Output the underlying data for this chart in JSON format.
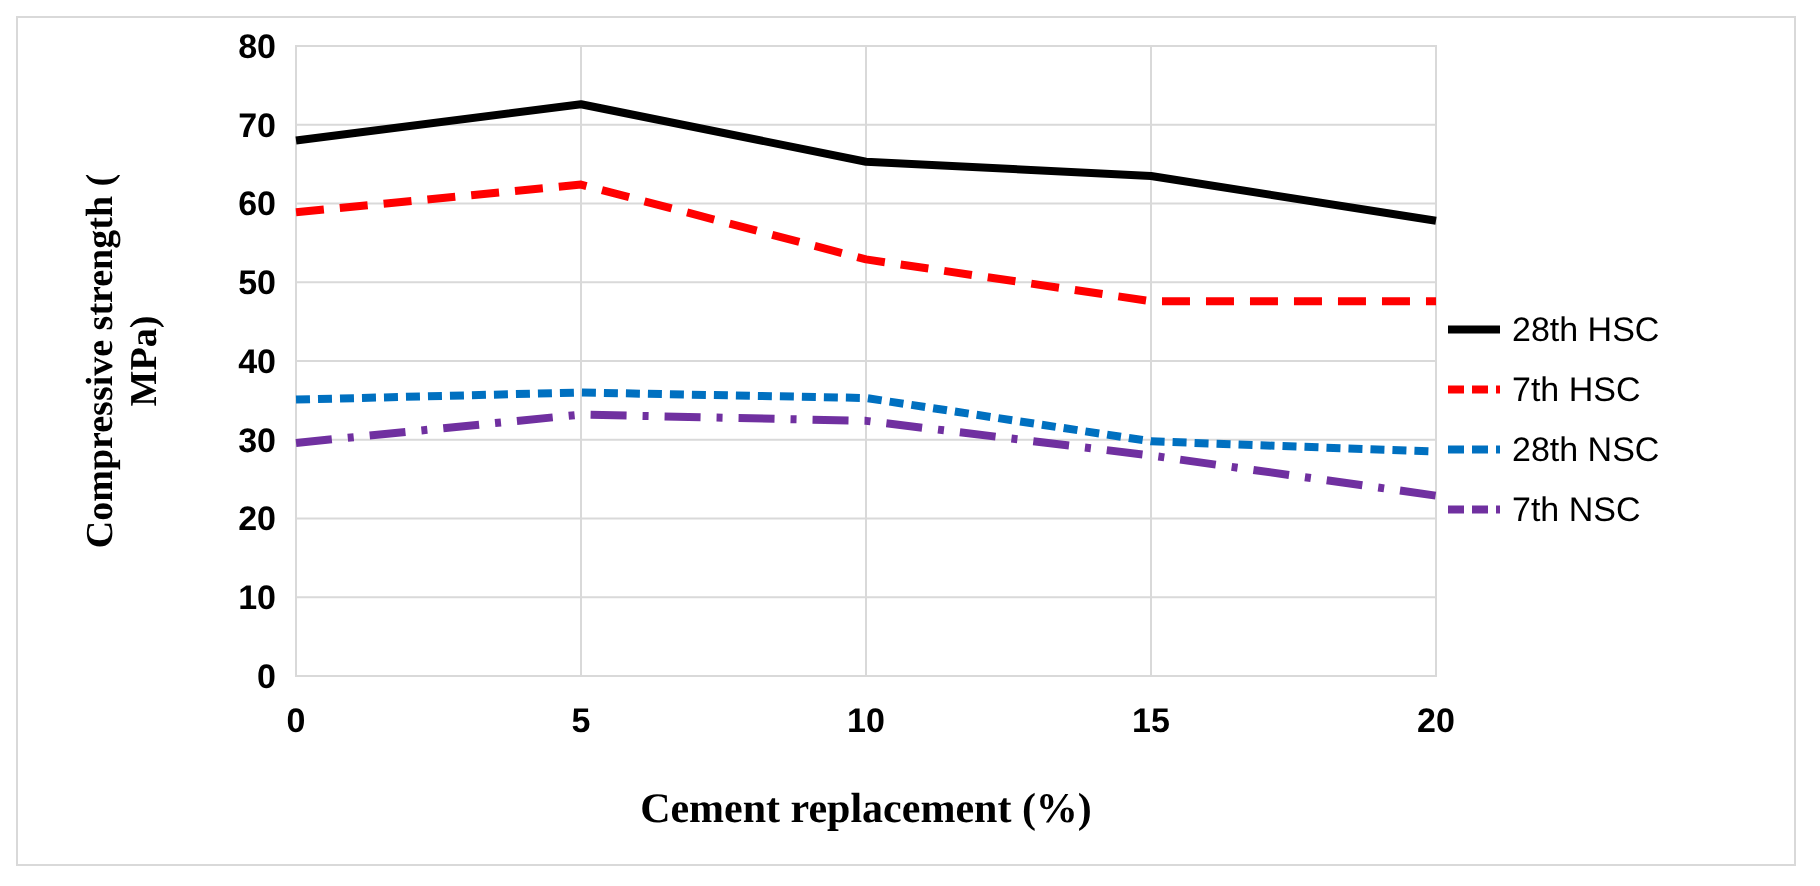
{
  "chart_data": {
    "type": "line",
    "xlabel": "Cement replacement (%)",
    "ylabel": "Compressive strength ( MPa)",
    "x": [
      0,
      5,
      10,
      15,
      20
    ],
    "xlim": [
      0,
      20
    ],
    "xticks": [
      0,
      5,
      10,
      15,
      20
    ],
    "ylim": [
      0,
      80
    ],
    "yticks": [
      0,
      10,
      20,
      30,
      40,
      50,
      60,
      70,
      80
    ],
    "grid": true,
    "legend": "right",
    "series": [
      {
        "name": "28th HSC",
        "color": "#000000",
        "line_style": "solid",
        "values": [
          68,
          72.6,
          65.3,
          63.5,
          57.8
        ]
      },
      {
        "name": "7th HSC",
        "color": "#ff0000",
        "line_style": "dashed",
        "values": [
          58.9,
          62.4,
          52.9,
          47.6,
          47.6
        ]
      },
      {
        "name": "28th NSC",
        "color": "#0070c0",
        "line_style": "dotted",
        "values": [
          35.1,
          36,
          35.3,
          29.8,
          28.5
        ]
      },
      {
        "name": "7th NSC",
        "color": "#7030a0",
        "line_style": "dashdot",
        "values": [
          29.6,
          33.2,
          32.4,
          28,
          22.9
        ]
      }
    ]
  }
}
